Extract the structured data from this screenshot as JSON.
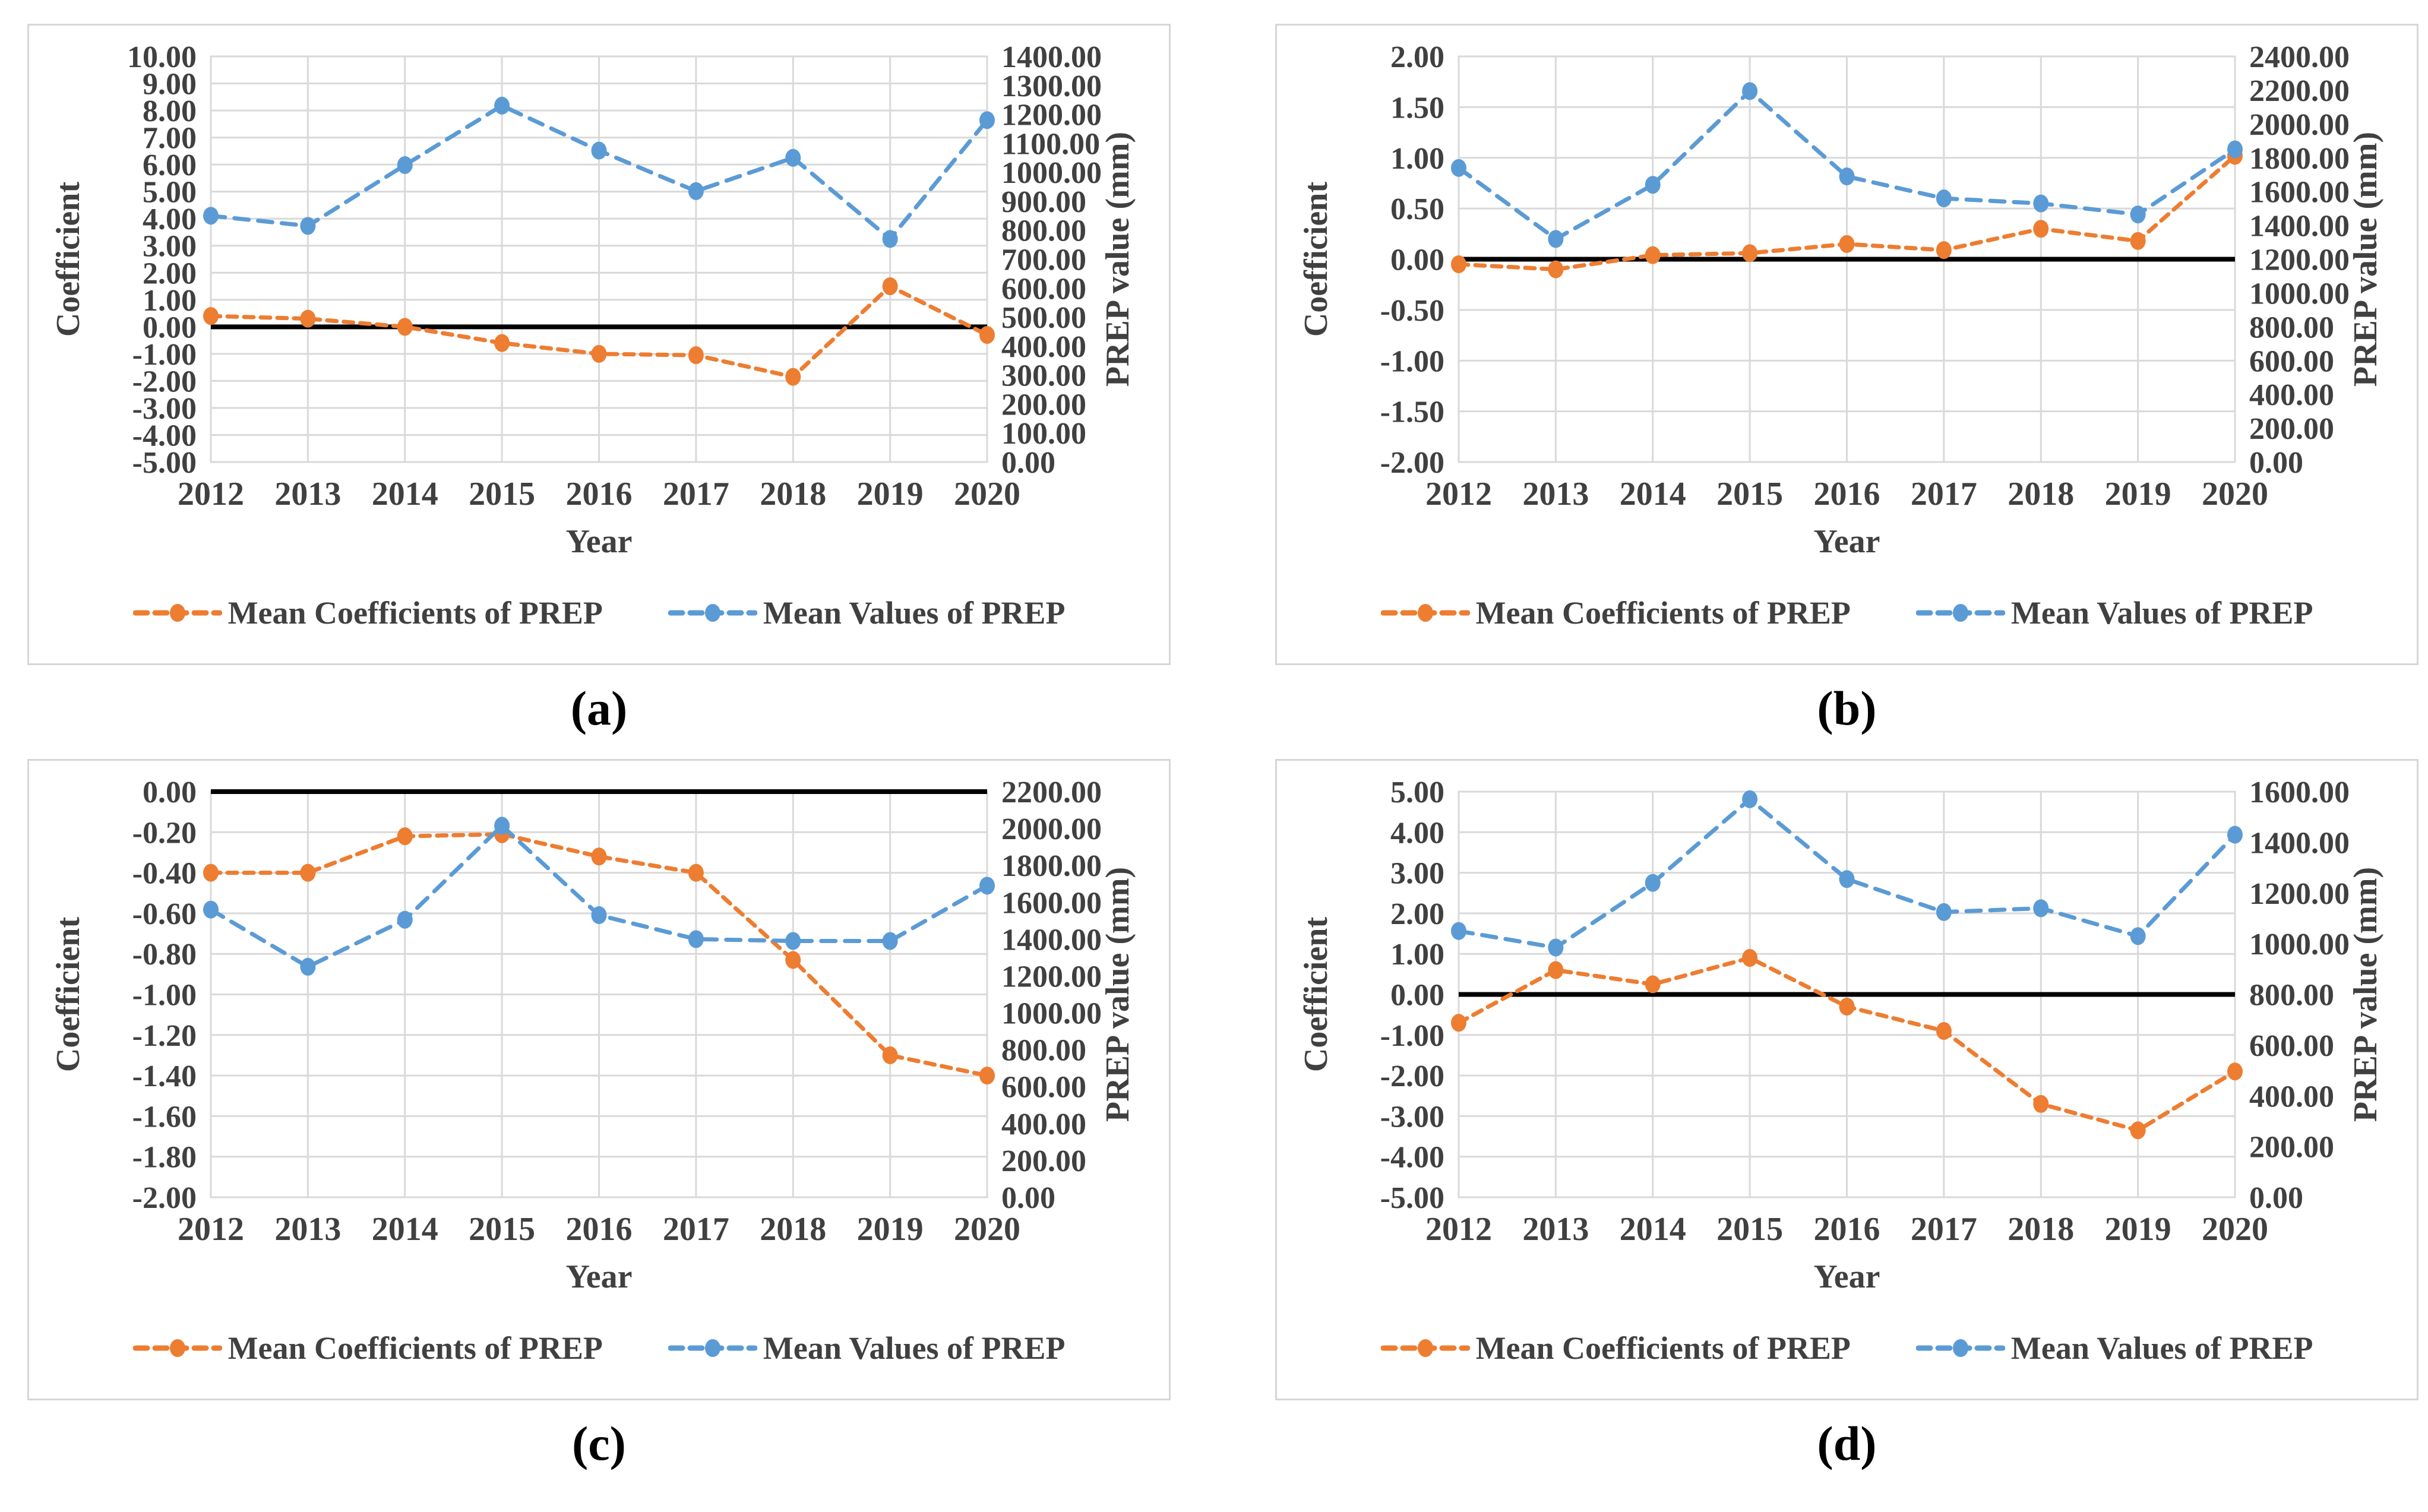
{
  "figure": {
    "x_axis_title": "Year",
    "left_axis_title": "Coefficient",
    "right_axis_title": "PREP value (mm)",
    "legend": {
      "coefficients_label": "Mean Coefficients of PREP",
      "values_label": "Mean Values of PREP"
    },
    "colors": {
      "coefficients_series": "#ED7D31",
      "values_series": "#5B9BD5",
      "zero_line": "#000000",
      "gridline": "#D9D9D9",
      "plot_frame": "#D9D9D9",
      "text": "#404040",
      "card_border": "#D6D6D6"
    }
  },
  "captions": {
    "a": "(a)",
    "b": "(b)",
    "c": "(c)",
    "d": "(d)"
  },
  "chart_data": [
    {
      "type": "line",
      "panel": "(a)",
      "x": [
        2012,
        2013,
        2014,
        2015,
        2016,
        2017,
        2018,
        2019,
        2020
      ],
      "xlabel": "Year",
      "ylabel_left": "Coefficient",
      "ylabel_right": "PREP value (mm)",
      "left_axis": {
        "min": -5.0,
        "max": 10.0,
        "step": 1.0
      },
      "right_axis": {
        "min": 0.0,
        "max": 1400.0,
        "step": 100.0
      },
      "zero_line": true,
      "grid": true,
      "legend_position": "bottom",
      "series": [
        {
          "name": "Mean Coefficients of PREP",
          "axis": "left",
          "color": "#ED7D31",
          "values": [
            0.4,
            0.3,
            0.0,
            -0.6,
            -1.0,
            -1.05,
            -1.85,
            1.5,
            -0.3
          ]
        },
        {
          "name": "Mean Values of PREP",
          "axis": "right",
          "color": "#5B9BD5",
          "values": [
            850,
            815,
            1025,
            1230,
            1075,
            935,
            1050,
            770,
            1180
          ]
        }
      ]
    },
    {
      "type": "line",
      "panel": "(b)",
      "x": [
        2012,
        2013,
        2014,
        2015,
        2016,
        2017,
        2018,
        2019,
        2020
      ],
      "xlabel": "Year",
      "ylabel_left": "Coefficient",
      "ylabel_right": "PREP value (mm)",
      "left_axis": {
        "min": -2.0,
        "max": 2.0,
        "step": 0.5
      },
      "right_axis": {
        "min": 0.0,
        "max": 2400.0,
        "step": 200.0
      },
      "zero_line": true,
      "grid": true,
      "legend_position": "bottom",
      "series": [
        {
          "name": "Mean Coefficients of PREP",
          "axis": "left",
          "color": "#ED7D31",
          "values": [
            -0.05,
            -0.1,
            0.04,
            0.06,
            0.15,
            0.09,
            0.3,
            0.18,
            1.02
          ]
        },
        {
          "name": "Mean Values of PREP",
          "axis": "right",
          "color": "#5B9BD5",
          "values": [
            1740,
            1320,
            1640,
            2195,
            1690,
            1560,
            1530,
            1465,
            1850
          ]
        }
      ]
    },
    {
      "type": "line",
      "panel": "(c)",
      "x": [
        2012,
        2013,
        2014,
        2015,
        2016,
        2017,
        2018,
        2019,
        2020
      ],
      "xlabel": "Year",
      "ylabel_left": "Coefficient",
      "ylabel_right": "PREP value (mm)",
      "left_axis": {
        "min": -2.0,
        "max": 0.0,
        "step": 0.2
      },
      "right_axis": {
        "min": 0.0,
        "max": 2200.0,
        "step": 200.0
      },
      "zero_line": true,
      "grid": true,
      "legend_position": "bottom",
      "series": [
        {
          "name": "Mean Coefficients of PREP",
          "axis": "left",
          "color": "#ED7D31",
          "values": [
            -0.4,
            -0.4,
            -0.22,
            -0.21,
            -0.32,
            -0.4,
            -0.83,
            -1.3,
            -1.4
          ]
        },
        {
          "name": "Mean Values of PREP",
          "axis": "right",
          "color": "#5B9BD5",
          "values": [
            1560,
            1250,
            1505,
            2015,
            1530,
            1400,
            1390,
            1390,
            1690
          ]
        }
      ]
    },
    {
      "type": "line",
      "panel": "(d)",
      "x": [
        2012,
        2013,
        2014,
        2015,
        2016,
        2017,
        2018,
        2019,
        2020
      ],
      "xlabel": "Year",
      "ylabel_left": "Coefficient",
      "ylabel_right": "PREP value (mm)",
      "left_axis": {
        "min": -5.0,
        "max": 5.0,
        "step": 1.0
      },
      "right_axis": {
        "min": 0.0,
        "max": 1600.0,
        "step": 200.0
      },
      "zero_line": true,
      "grid": true,
      "legend_position": "bottom",
      "series": [
        {
          "name": "Mean Coefficients of PREP",
          "axis": "left",
          "color": "#ED7D31",
          "values": [
            -0.7,
            0.6,
            0.25,
            0.9,
            -0.3,
            -0.9,
            -2.7,
            -3.35,
            -1.9
          ]
        },
        {
          "name": "Mean Values of PREP",
          "axis": "right",
          "color": "#5B9BD5",
          "values": [
            1050,
            985,
            1240,
            1570,
            1255,
            1125,
            1140,
            1030,
            1430
          ]
        }
      ]
    }
  ]
}
